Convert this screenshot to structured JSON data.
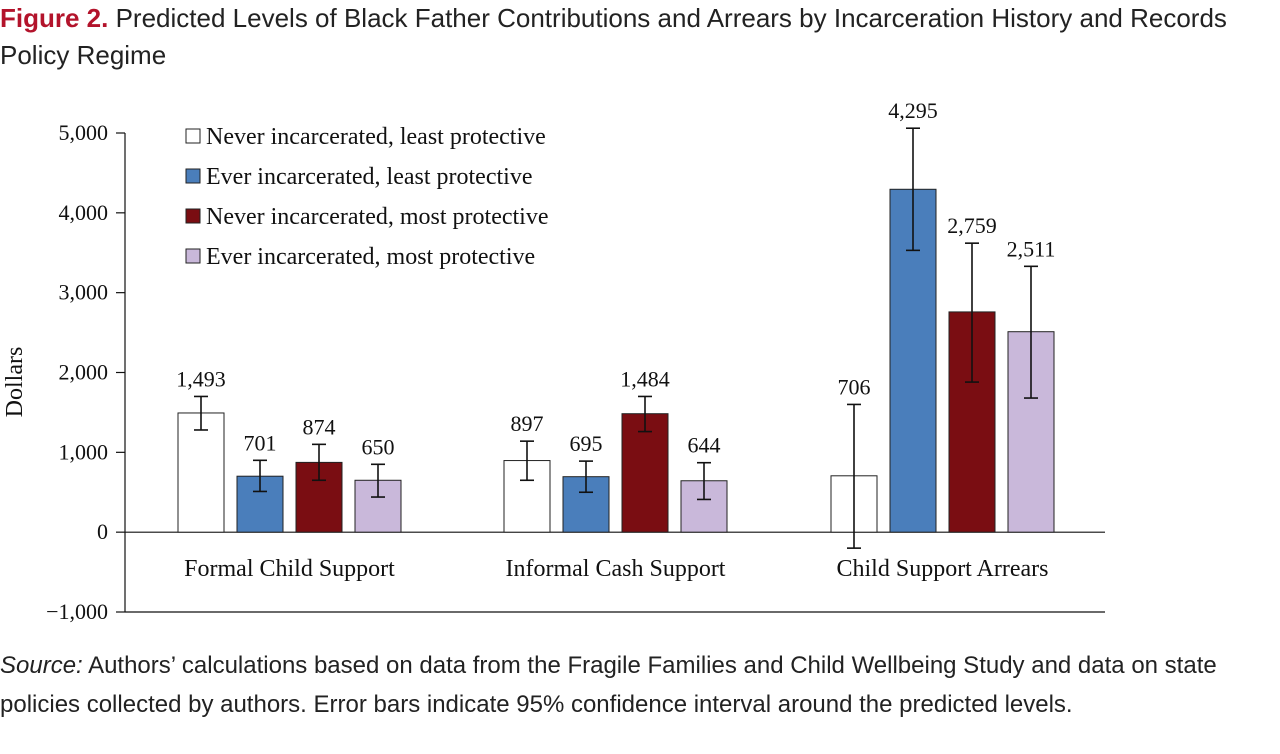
{
  "figure": {
    "label": "Figure 2.",
    "title": "Predicted Levels of Black Father Contributions and Arrears by Incarceration History and Records Policy Regime"
  },
  "source": {
    "label": "Source:",
    "text": "Authors’ calculations based on data from the Fragile Families and Child Wellbeing Study and data on state policies collected by authors. Error bars indicate 95% confidence interval around the predicted levels."
  },
  "chart_data": {
    "type": "bar",
    "ylabel": "Dollars",
    "ylim": [
      -1000,
      5000
    ],
    "yticks": [
      -1000,
      0,
      1000,
      2000,
      3000,
      4000,
      5000
    ],
    "ytick_labels": [
      "−1,000",
      "0",
      "1,000",
      "2,000",
      "3,000",
      "4,000",
      "5,000"
    ],
    "grid": false,
    "legend_position": "top-left",
    "categories": [
      "Formal Child Support",
      "Informal Cash Support",
      "Child Support Arrears"
    ],
    "series": [
      {
        "name": "Never incarcerated, least protective",
        "color": "#ffffff",
        "values": [
          1493,
          897,
          706
        ],
        "labels": [
          "1,493",
          "897",
          "706"
        ],
        "ci_low": [
          1280,
          650,
          -200
        ],
        "ci_high": [
          1700,
          1140,
          1600
        ]
      },
      {
        "name": "Ever incarcerated, least protective",
        "color": "#4a7ebb",
        "values": [
          701,
          695,
          4295
        ],
        "labels": [
          "701",
          "695",
          "4,295"
        ],
        "ci_low": [
          510,
          500,
          3530
        ],
        "ci_high": [
          900,
          890,
          5060
        ]
      },
      {
        "name": "Never incarcerated, most protective",
        "color": "#7a0d12",
        "values": [
          874,
          1484,
          2759
        ],
        "labels": [
          "874",
          "1,484",
          "2,759"
        ],
        "ci_low": [
          650,
          1260,
          1880
        ],
        "ci_high": [
          1100,
          1700,
          3620
        ]
      },
      {
        "name": "Ever incarcerated, most protective",
        "color": "#c9b8da",
        "values": [
          650,
          644,
          2511
        ],
        "labels": [
          "650",
          "644",
          "2,511"
        ],
        "ci_low": [
          440,
          410,
          1680
        ],
        "ci_high": [
          850,
          870,
          3330
        ]
      }
    ]
  }
}
